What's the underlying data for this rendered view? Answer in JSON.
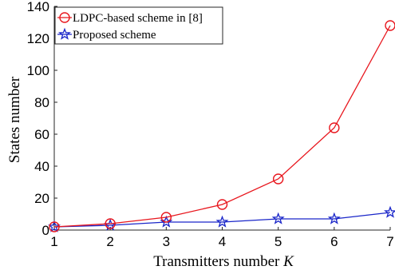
{
  "chart_data": {
    "type": "line",
    "xlabel_text": "Transmitters number ",
    "xlabel_var": "K",
    "ylabel": "States number",
    "xlim": [
      1,
      7
    ],
    "ylim": [
      0,
      140
    ],
    "xticks": [
      1,
      2,
      3,
      4,
      5,
      6,
      7
    ],
    "yticks": [
      0,
      20,
      40,
      60,
      80,
      100,
      120,
      140
    ],
    "grid": false,
    "legend_position": "top-left",
    "x": [
      1,
      2,
      3,
      4,
      5,
      6,
      7
    ],
    "series": [
      {
        "name": "LDPC-based scheme in [8]",
        "values": [
          2,
          4,
          8,
          16,
          32,
          64,
          128
        ],
        "color": "#e8161d",
        "marker": "circle"
      },
      {
        "name": "Proposed scheme",
        "values": [
          2,
          3,
          5,
          5,
          7,
          7,
          11
        ],
        "color": "#1a26c9",
        "marker": "star"
      }
    ]
  }
}
